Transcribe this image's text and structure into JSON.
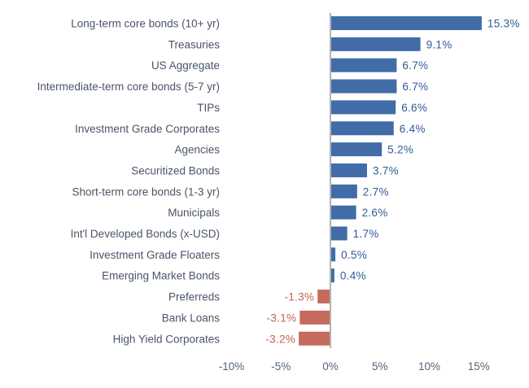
{
  "chart_data": {
    "type": "bar",
    "orientation": "horizontal",
    "title": "",
    "xlabel": "",
    "ylabel": "",
    "xlim": [
      -10,
      15
    ],
    "x_ticks": [
      -10,
      -5,
      0,
      5,
      10,
      15
    ],
    "x_tick_labels": [
      "-10%",
      "-5%",
      "0%",
      "5%",
      "10%",
      "15%"
    ],
    "grid": false,
    "categories": [
      "Long-term core bonds (10+ yr)",
      "Treasuries",
      "US Aggregate",
      "Intermediate-term core bonds (5-7 yr)",
      "TIPs",
      "Investment Grade Corporates",
      "Agencies",
      "Securitized Bonds",
      "Short-term core bonds (1-3 yr)",
      "Municipals",
      "Int'l Developed Bonds (x-USD)",
      "Investment Grade Floaters",
      "Emerging Market Bonds",
      "Preferreds",
      "Bank Loans",
      "High Yield Corporates"
    ],
    "values": [
      15.3,
      9.1,
      6.7,
      6.7,
      6.6,
      6.4,
      5.2,
      3.7,
      2.7,
      2.6,
      1.7,
      0.5,
      0.4,
      -1.3,
      -3.1,
      -3.2
    ],
    "data_labels": [
      "15.3%",
      "9.1%",
      "6.7%",
      "6.7%",
      "6.6%",
      "6.4%",
      "5.2%",
      "3.7%",
      "2.7%",
      "2.6%",
      "1.7%",
      "0.5%",
      "0.4%",
      "-1.3%",
      "-3.1%",
      "-3.2%"
    ],
    "colors": {
      "positive": "#416ca8",
      "negative": "#c46b5e",
      "axis": "#b3b3b3"
    }
  }
}
